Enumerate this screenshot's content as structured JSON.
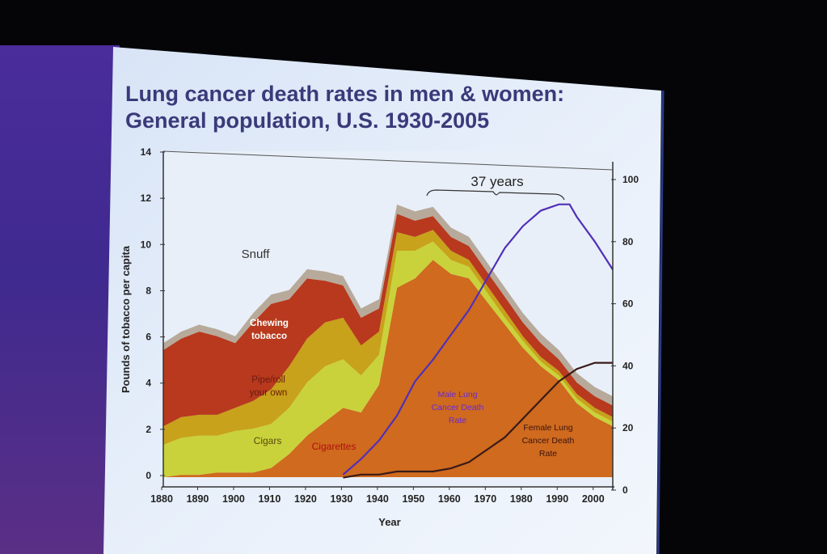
{
  "slide": {
    "title_line1": "Lung cancer death rates in men & women:",
    "title_line2": "General population, U.S. 1930-2005"
  },
  "colors": {
    "snuff": "#b7aa9b",
    "chewing": "#b8391d",
    "pipe": "#c8a21a",
    "cigars": "#c9d23a",
    "cigarettes": "#cf6a1e",
    "male_line": "#5030b8",
    "female_line": "#3a1a18",
    "title": "#3a3a7a"
  },
  "chart_data": {
    "type": "area",
    "title": "Lung cancer death rates in men & women: General population, U.S. 1930-2005",
    "xlabel": "Year",
    "ylabel": "Pounds of tobacco per capita",
    "ylabel_right": "",
    "xlim": [
      1880,
      2005
    ],
    "ylim": [
      0,
      14
    ],
    "ylim_right": [
      0,
      100
    ],
    "x_ticks": [
      "1880",
      "1890",
      "1900",
      "1910",
      "1920",
      "1930",
      "1940",
      "1950",
      "1960",
      "1970",
      "1980",
      "1990",
      "2000"
    ],
    "y_ticks": [
      "0",
      "2",
      "4",
      "6",
      "8",
      "10",
      "12",
      "14"
    ],
    "y_ticks_right": [
      "0",
      "20",
      "40",
      "60",
      "80",
      "100"
    ],
    "grid": false,
    "years": [
      1880,
      1885,
      1890,
      1895,
      1900,
      1905,
      1910,
      1915,
      1920,
      1925,
      1930,
      1935,
      1940,
      1945,
      1950,
      1955,
      1960,
      1965,
      1970,
      1975,
      1980,
      1985,
      1990,
      1995,
      2000,
      2005
    ],
    "stacked_series": [
      {
        "name": "Cigarettes",
        "label": "Cigarettes",
        "values": [
          0.0,
          0.1,
          0.1,
          0.2,
          0.2,
          0.2,
          0.4,
          1.0,
          1.8,
          2.4,
          3.0,
          2.8,
          4.0,
          8.2,
          8.6,
          9.4,
          8.8,
          8.6,
          7.6,
          6.6,
          5.6,
          4.8,
          4.2,
          3.2,
          2.6,
          2.2
        ]
      },
      {
        "name": "Cigars",
        "label": "Cigars",
        "values": [
          1.4,
          1.6,
          1.7,
          1.6,
          1.8,
          1.9,
          1.9,
          2.0,
          2.3,
          2.4,
          2.1,
          1.6,
          1.3,
          1.6,
          1.2,
          0.8,
          0.6,
          0.5,
          0.4,
          0.3,
          0.3,
          0.2,
          0.2,
          0.2,
          0.2,
          0.2
        ]
      },
      {
        "name": "Pipe/roll your own",
        "label": "Pipe/roll your own",
        "values": [
          0.8,
          0.9,
          0.9,
          0.9,
          1.0,
          1.2,
          1.5,
          1.8,
          1.9,
          1.9,
          1.8,
          1.3,
          1.0,
          0.8,
          0.6,
          0.5,
          0.4,
          0.3,
          0.3,
          0.3,
          0.2,
          0.2,
          0.2,
          0.2,
          0.2,
          0.2
        ]
      },
      {
        "name": "Chewing tobacco",
        "label": "Chewing tobacco",
        "values": [
          3.3,
          3.4,
          3.6,
          3.4,
          2.8,
          3.4,
          3.7,
          2.9,
          2.6,
          1.8,
          1.4,
          1.2,
          1.0,
          0.8,
          0.7,
          0.6,
          0.6,
          0.6,
          0.6,
          0.6,
          0.6,
          0.6,
          0.5,
          0.5,
          0.5,
          0.5
        ]
      },
      {
        "name": "Snuff",
        "label": "Snuff",
        "values": [
          0.3,
          0.3,
          0.3,
          0.3,
          0.3,
          0.4,
          0.4,
          0.4,
          0.4,
          0.4,
          0.4,
          0.4,
          0.4,
          0.4,
          0.4,
          0.4,
          0.4,
          0.4,
          0.4,
          0.4,
          0.4,
          0.4,
          0.4,
          0.4,
          0.4,
          0.4
        ]
      }
    ],
    "lines_right_axis": [
      {
        "name": "Male Lung Cancer Death Rate",
        "label": "Male Lung Cancer Death Rate",
        "x": [
          1930,
          1935,
          1940,
          1945,
          1950,
          1955,
          1960,
          1965,
          1970,
          1975,
          1980,
          1985,
          1990,
          1993,
          1995,
          2000,
          2005
        ],
        "values": [
          5,
          10,
          16,
          24,
          35,
          42,
          50,
          58,
          68,
          78,
          85,
          90,
          92,
          92,
          88,
          80,
          71
        ]
      },
      {
        "name": "Female Lung Cancer Death Rate",
        "label": "Female Lung Cancer Death Rate",
        "x": [
          1930,
          1935,
          1940,
          1945,
          1950,
          1955,
          1960,
          1965,
          1970,
          1975,
          1980,
          1985,
          1990,
          1995,
          2000,
          2005
        ],
        "values": [
          4,
          5,
          5,
          6,
          6,
          6,
          7,
          9,
          13,
          17,
          23,
          29,
          35,
          39,
          41,
          41
        ]
      }
    ],
    "annotations": [
      {
        "text": "Snuff"
      },
      {
        "text": "37 years",
        "from_year": 1953,
        "to_year": 1990
      }
    ]
  }
}
